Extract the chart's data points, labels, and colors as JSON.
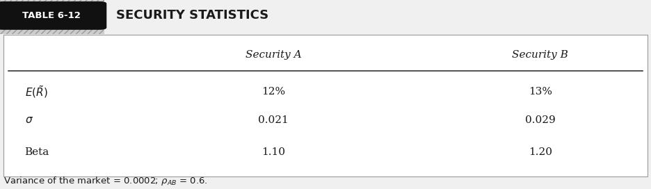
{
  "table_label": "TABLE 6-12",
  "table_title": "SECURITY STATISTICS",
  "col_headers": [
    "Security A",
    "Security B"
  ],
  "values": [
    [
      "12%",
      "13%"
    ],
    [
      "0.021",
      "0.029"
    ],
    [
      "1.10",
      "1.20"
    ]
  ],
  "footer": "Variance of the market = 0.0002; $\\rho_{AB}$ = 0.6.",
  "bg_color": "#f0f0f0",
  "table_bg": "#ffffff",
  "label_bg": "#111111",
  "label_text_color": "#ffffff",
  "title_color": "#1a1a1a",
  "hatch_color": "#aaaaaa",
  "line_color": "#333333"
}
